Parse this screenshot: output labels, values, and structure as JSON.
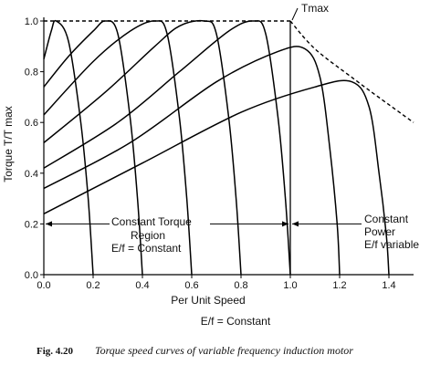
{
  "chart_data": {
    "type": "line",
    "title": "",
    "xlabel": "Per Unit Speed",
    "ylabel": "Torque T/T max",
    "xlim": [
      0,
      1.5
    ],
    "ylim": [
      0,
      1.0
    ],
    "x_ticks": [
      "0.0",
      "0.2",
      "0.4",
      "0.6",
      "0.8",
      "1.0",
      "1.2",
      "1.4"
    ],
    "y_ticks": [
      "0.0",
      "0.2",
      "0.4",
      "0.6",
      "0.8",
      "1.0"
    ],
    "x_tick_values": [
      0,
      0.2,
      0.4,
      0.6,
      0.8,
      1.0,
      1.2,
      1.4
    ],
    "y_tick_values": [
      0,
      0.2,
      0.4,
      0.6,
      0.8,
      1.0
    ],
    "grid": false,
    "series": [
      {
        "values": [
          [
            0,
            0.85
          ],
          [
            0.03,
            0.96
          ],
          [
            0.05,
            1.0
          ],
          [
            0.1,
            0.92
          ],
          [
            0.15,
            0.6
          ],
          [
            0.18,
            0.3
          ],
          [
            0.2,
            0.0
          ]
        ]
      },
      {
        "values": [
          [
            0,
            0.74
          ],
          [
            0.1,
            0.86
          ],
          [
            0.2,
            0.96
          ],
          [
            0.25,
            1.0
          ],
          [
            0.3,
            0.95
          ],
          [
            0.35,
            0.62
          ],
          [
            0.38,
            0.3
          ],
          [
            0.4,
            0.0
          ]
        ]
      },
      {
        "values": [
          [
            0,
            0.63
          ],
          [
            0.2,
            0.84
          ],
          [
            0.35,
            0.96
          ],
          [
            0.45,
            1.0
          ],
          [
            0.5,
            0.95
          ],
          [
            0.55,
            0.62
          ],
          [
            0.58,
            0.3
          ],
          [
            0.6,
            0.0
          ]
        ]
      },
      {
        "values": [
          [
            0,
            0.52
          ],
          [
            0.25,
            0.72
          ],
          [
            0.45,
            0.9
          ],
          [
            0.55,
            0.98
          ],
          [
            0.65,
            1.0
          ],
          [
            0.7,
            0.95
          ],
          [
            0.75,
            0.62
          ],
          [
            0.78,
            0.3
          ],
          [
            0.8,
            0.0
          ]
        ]
      },
      {
        "values": [
          [
            0,
            0.42
          ],
          [
            0.3,
            0.6
          ],
          [
            0.55,
            0.8
          ],
          [
            0.75,
            0.96
          ],
          [
            0.85,
            1.0
          ],
          [
            0.9,
            0.95
          ],
          [
            0.95,
            0.62
          ],
          [
            0.98,
            0.3
          ],
          [
            1.0,
            0.0
          ]
        ]
      },
      {
        "values": [
          [
            0,
            0.34
          ],
          [
            0.35,
            0.52
          ],
          [
            0.7,
            0.76
          ],
          [
            0.95,
            0.88
          ],
          [
            1.06,
            0.89
          ],
          [
            1.12,
            0.78
          ],
          [
            1.16,
            0.5
          ],
          [
            1.19,
            0.2
          ],
          [
            1.2,
            0.0
          ]
        ]
      },
      {
        "values": [
          [
            0,
            0.24
          ],
          [
            0.4,
            0.44
          ],
          [
            0.8,
            0.64
          ],
          [
            1.1,
            0.74
          ],
          [
            1.25,
            0.76
          ],
          [
            1.32,
            0.66
          ],
          [
            1.36,
            0.4
          ],
          [
            1.39,
            0.15
          ],
          [
            1.4,
            0.0
          ]
        ]
      }
    ],
    "tmax_envelope": [
      [
        0,
        1.0
      ],
      [
        1.0,
        1.0
      ],
      [
        1.1,
        0.89
      ],
      [
        1.26,
        0.77
      ],
      [
        1.4,
        0.67
      ],
      [
        1.5,
        0.6
      ]
    ],
    "regions": {
      "boundary_speed": 1.0,
      "arrow_level": 0.2,
      "constant_torque": [
        "Constant  Torque",
        "Region",
        "E/f  = Constant"
      ],
      "constant_power": [
        "Constant",
        "Power",
        "E/f variable"
      ]
    },
    "annotations": {
      "tmax_label": "Tmax",
      "below_axis": "E/f = Constant"
    },
    "caption": {
      "label": "Fig. 4.20",
      "text": "Torque speed curves of variable frequency induction motor"
    }
  }
}
